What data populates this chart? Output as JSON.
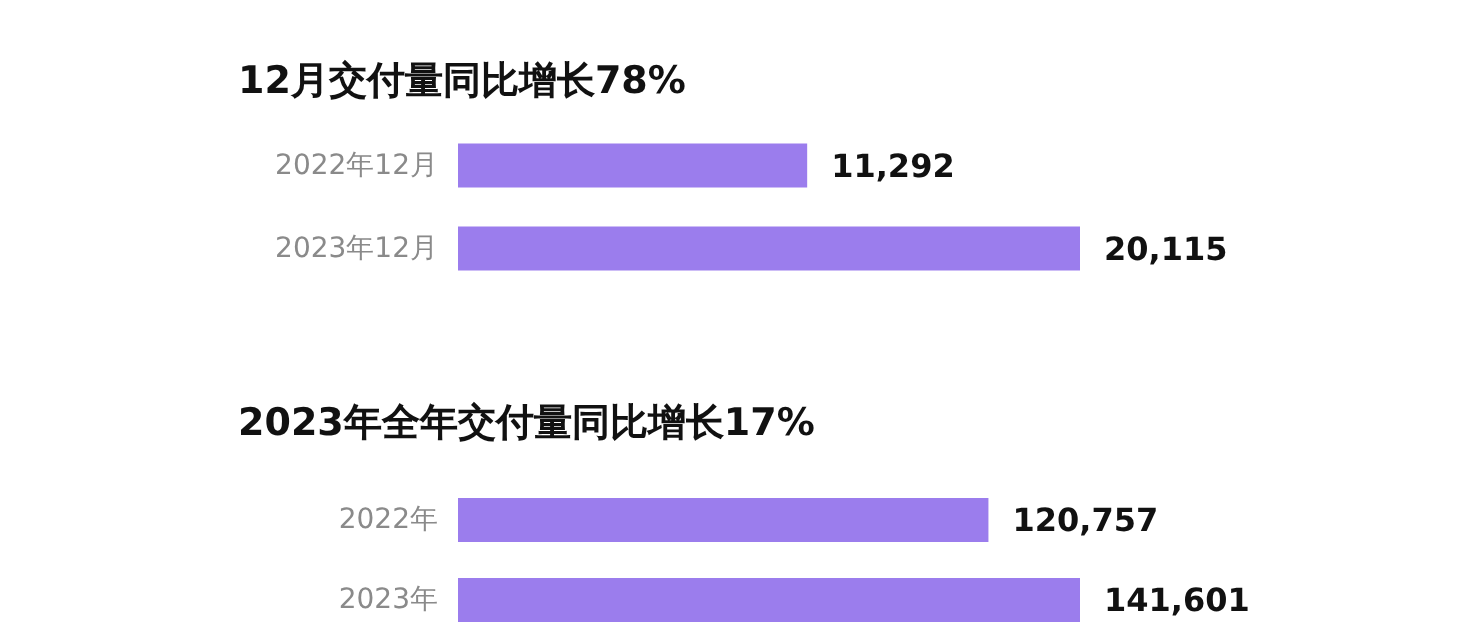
{
  "chart_data": [
    {
      "type": "bar",
      "orientation": "horizontal",
      "title": "12月交付量同比增长78%",
      "categories": [
        "2022年12月",
        "2023年12月"
      ],
      "values": [
        11292,
        20115
      ],
      "value_labels": [
        "11,292",
        "20,115"
      ],
      "color": "#9b7ded"
    },
    {
      "type": "bar",
      "orientation": "horizontal",
      "title": "2023年全年交付量同比增长17%",
      "categories": [
        "2022年",
        "2023年"
      ],
      "values": [
        120757,
        141601
      ],
      "value_labels": [
        "120,757",
        "141,601"
      ],
      "color": "#9b7ded"
    }
  ]
}
